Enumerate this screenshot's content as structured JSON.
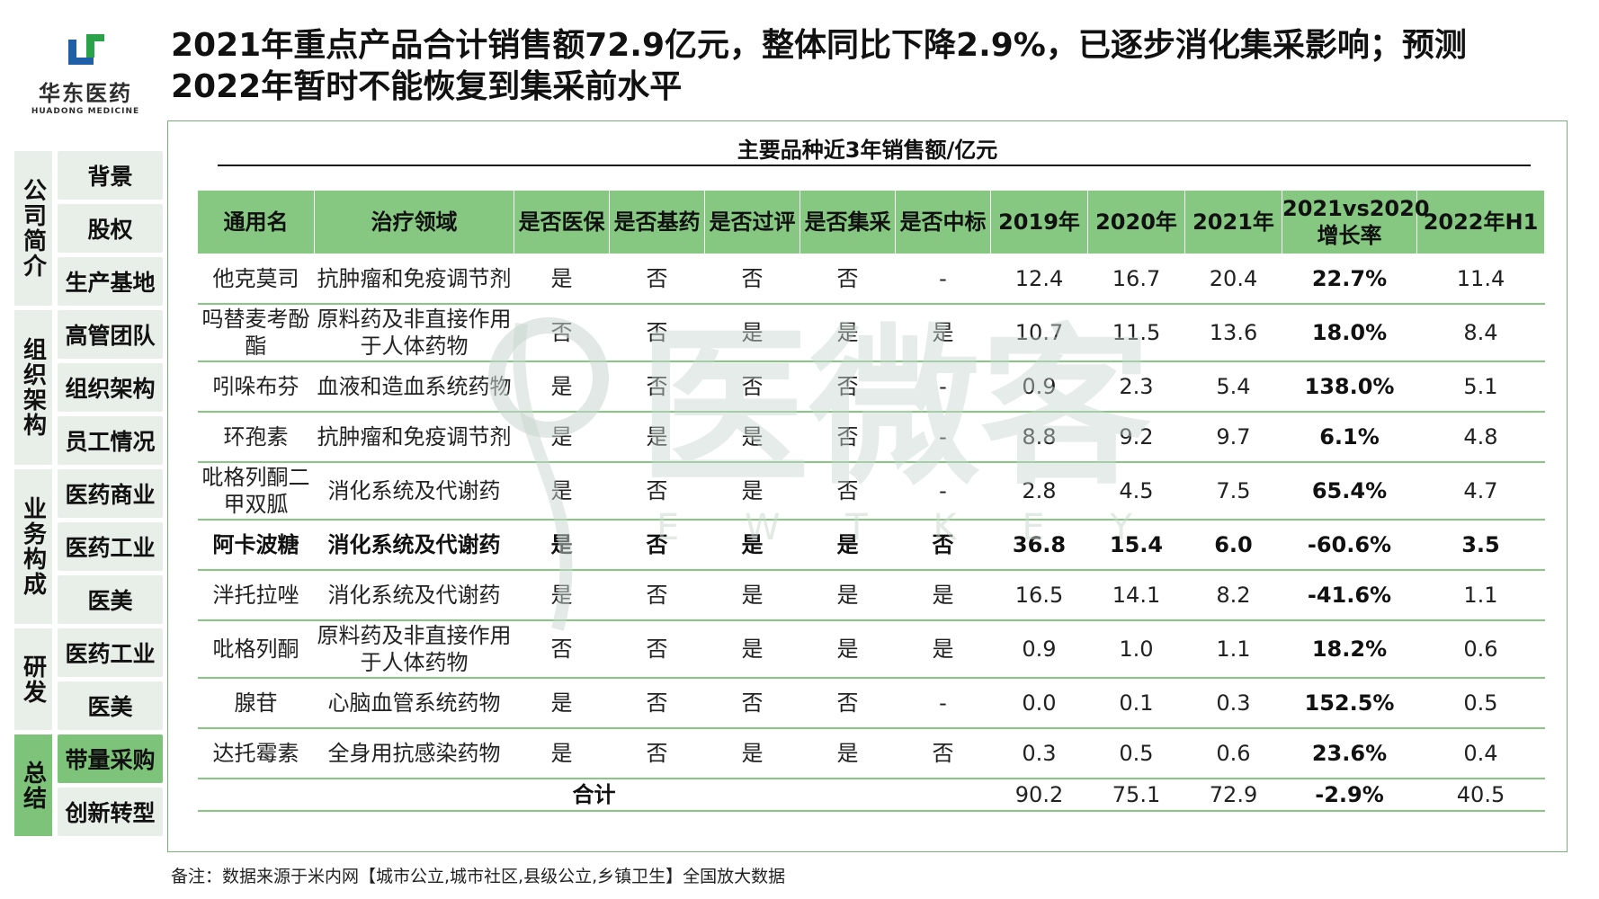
{
  "logo": {
    "name_cn": "华东医药",
    "name_en": "HUADONG MEDICINE"
  },
  "title_line1": "2021年重点产品合计销售额72.9亿元，整体同比下降2.9%，已逐步消化集采影响；预测",
  "title_line2": "2022年暂时不能恢复到集采前水平",
  "sidebar": {
    "groups": [
      {
        "label": "公司简介",
        "items": [
          "背景",
          "股权",
          "生产基地"
        ]
      },
      {
        "label": "组织架构",
        "items": [
          "高管团队",
          "组织架构",
          "员工情况"
        ]
      },
      {
        "label": "业务构成",
        "items": [
          "医药商业",
          "医药工业",
          "医美"
        ]
      },
      {
        "label": "研发",
        "items": [
          "医药工业",
          "医美"
        ]
      },
      {
        "label": "总结",
        "items": [
          "带量采购",
          "创新转型"
        ]
      }
    ]
  },
  "panel_title": "主要品种近3年销售额/亿元",
  "table": {
    "headers": [
      "通用名",
      "治疗领域",
      "是否医保",
      "是否基药",
      "是否过评",
      "是否集采",
      "是否中标",
      "2019年",
      "2020年",
      "2021年",
      "2021vs2020增长率",
      "2022年H1"
    ],
    "rows": [
      [
        "他克莫司",
        "抗肿瘤和免疫调节剂",
        "是",
        "否",
        "否",
        "否",
        "-",
        "12.4",
        "16.7",
        "20.4",
        "22.7%",
        "11.4"
      ],
      [
        "吗替麦考酚酯",
        "原料药及非直接作用于人体药物",
        "否",
        "否",
        "是",
        "是",
        "是",
        "10.7",
        "11.5",
        "13.6",
        "18.0%",
        "8.4"
      ],
      [
        "吲哚布芬",
        "血液和造血系统药物",
        "是",
        "否",
        "否",
        "否",
        "-",
        "0.9",
        "2.3",
        "5.4",
        "138.0%",
        "5.1"
      ],
      [
        "环孢素",
        "抗肿瘤和免疫调节剂",
        "是",
        "是",
        "是",
        "否",
        "-",
        "8.8",
        "9.2",
        "9.7",
        "6.1%",
        "4.8"
      ],
      [
        "吡格列酮二甲双胍",
        "消化系统及代谢药",
        "是",
        "否",
        "是",
        "否",
        "-",
        "2.8",
        "4.5",
        "7.5",
        "65.4%",
        "4.7"
      ],
      [
        "阿卡波糖",
        "消化系统及代谢药",
        "是",
        "否",
        "是",
        "是",
        "否",
        "36.8",
        "15.4",
        "6.0",
        "-60.6%",
        "3.5"
      ],
      [
        "泮托拉唑",
        "消化系统及代谢药",
        "是",
        "否",
        "是",
        "是",
        "是",
        "16.5",
        "14.1",
        "8.2",
        "-41.6%",
        "1.1"
      ],
      [
        "吡格列酮",
        "原料药及非直接作用于人体药物",
        "否",
        "否",
        "是",
        "是",
        "是",
        "0.9",
        "1.0",
        "1.1",
        "18.2%",
        "0.6"
      ],
      [
        "腺苷",
        "心脑血管系统药物",
        "是",
        "否",
        "否",
        "否",
        "-",
        "0.0",
        "0.1",
        "0.3",
        "152.5%",
        "0.5"
      ],
      [
        "达托霉素",
        "全身用抗感染药物",
        "是",
        "否",
        "是",
        "是",
        "否",
        "0.3",
        "0.5",
        "0.6",
        "23.6%",
        "0.4"
      ]
    ],
    "total": {
      "label": "合计",
      "y2019": "90.2",
      "y2020": "75.1",
      "y2021": "72.9",
      "rate": "-2.9%",
      "h1_2022": "40.5"
    }
  },
  "watermark": {
    "text": "医微客",
    "sub": "E W T K E Y"
  },
  "note": "备注：数据来源于米内网【城市公立,城市社区,县级公立,乡镇卫生】全国放大数据"
}
